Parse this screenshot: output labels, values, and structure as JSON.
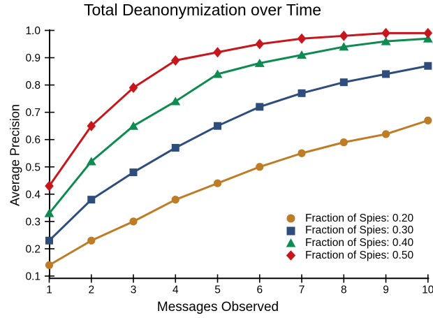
{
  "figure": {
    "background_color": "#ffffff",
    "text_color": "#000000",
    "axis_color": "#000000"
  },
  "chart_data": {
    "type": "line",
    "title": "Total Deanonymization over Time",
    "xlabel": "Messages Observed",
    "ylabel": "Average Precision",
    "grid": false,
    "legend_position": "lower right",
    "xlim": [
      1,
      10
    ],
    "ylim": [
      0.1,
      1.0
    ],
    "x": [
      1,
      2,
      3,
      4,
      5,
      6,
      7,
      8,
      9,
      10
    ],
    "x_tick_labels": [
      "1",
      "2",
      "3",
      "4",
      "5",
      "6",
      "7",
      "8",
      "9",
      "10"
    ],
    "y_ticks": [
      0.1,
      0.2,
      0.3,
      0.4,
      0.5,
      0.6,
      0.7,
      0.8,
      0.9,
      1.0
    ],
    "y_tick_labels": [
      "0.1",
      "0.2",
      "0.3",
      "0.4",
      "0.5",
      "0.6",
      "0.7",
      "0.8",
      "0.9",
      "1.0"
    ],
    "series": [
      {
        "name": "Fraction of Spies: 0.20",
        "marker": "circle",
        "color": "#BE7C26",
        "values": [
          0.14,
          0.23,
          0.3,
          0.38,
          0.44,
          0.5,
          0.55,
          0.59,
          0.62,
          0.67
        ]
      },
      {
        "name": "Fraction of Spies: 0.30",
        "marker": "square",
        "color": "#2E4D7C",
        "values": [
          0.23,
          0.38,
          0.48,
          0.57,
          0.65,
          0.72,
          0.77,
          0.81,
          0.84,
          0.87
        ]
      },
      {
        "name": "Fraction of Spies: 0.40",
        "marker": "triangle",
        "color": "#0E8B50",
        "values": [
          0.33,
          0.52,
          0.65,
          0.74,
          0.84,
          0.88,
          0.91,
          0.94,
          0.96,
          0.97
        ]
      },
      {
        "name": "Fraction of Spies: 0.50",
        "marker": "diamond",
        "color": "#C8161D",
        "values": [
          0.43,
          0.65,
          0.79,
          0.89,
          0.92,
          0.95,
          0.97,
          0.98,
          0.99,
          0.99
        ]
      }
    ]
  }
}
